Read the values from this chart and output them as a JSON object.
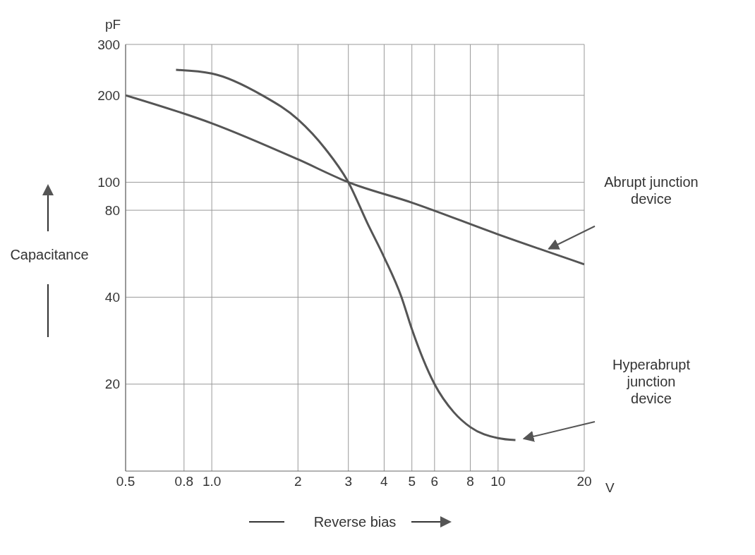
{
  "chart_data": {
    "type": "line",
    "xlabel": "Reverse bias",
    "ylabel": "Capacitance",
    "annotations": [
      "pF",
      "V"
    ],
    "log": "xy",
    "grid": true,
    "legend": false,
    "marker": "none",
    "line_style": "solid",
    "xlim": [
      0.5,
      20
    ],
    "xticks": [
      0.5,
      0.8,
      {
        "value": 1,
        "label": "1.0"
      },
      2,
      3,
      4,
      5,
      6,
      8,
      10,
      20
    ],
    "ylim": [
      10,
      300
    ],
    "yticks": [
      20,
      40,
      80,
      100,
      200,
      300
    ],
    "series": [
      {
        "name": "Abrupt junction device",
        "color": "#555555",
        "x": [
          0.5,
          1,
          2,
          3,
          5,
          10,
          20
        ],
        "values": [
          200,
          160,
          120,
          100,
          85,
          66,
          52
        ]
      },
      {
        "name": "Hyperabrupt junction device",
        "color": "#555555",
        "x": [
          0.75,
          1,
          1.5,
          2,
          2.5,
          3,
          3.5,
          4,
          4.6,
          5,
          6,
          7,
          8,
          10,
          11.5
        ],
        "values": [
          245,
          238,
          200,
          165,
          130,
          100,
          72,
          55,
          40,
          31,
          20,
          16,
          14.2,
          13,
          12.8
        ]
      }
    ]
  }
}
